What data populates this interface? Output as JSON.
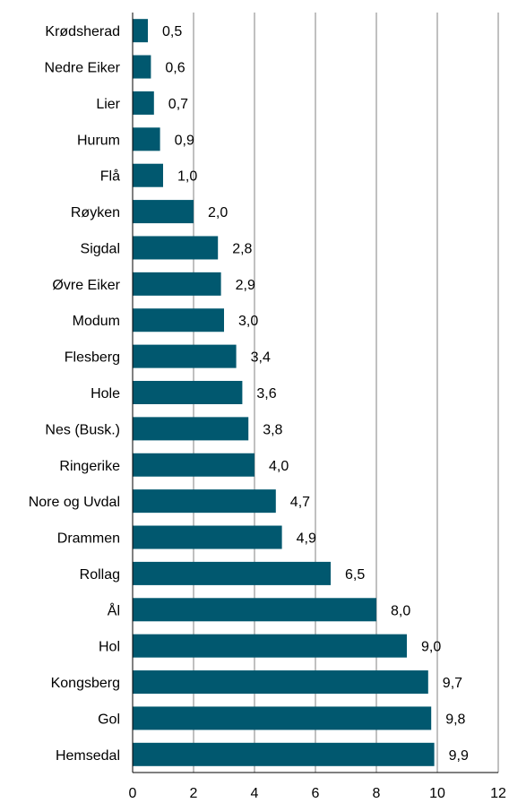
{
  "chart_data": {
    "type": "bar",
    "orientation": "horizontal",
    "categories": [
      "Krødsherad",
      "Nedre Eiker",
      "Lier",
      "Hurum",
      "Flå",
      "Røyken",
      "Sigdal",
      "Øvre Eiker",
      "Modum",
      "Flesberg",
      "Hole",
      "Nes (Busk.)",
      "Ringerike",
      "Nore og Uvdal",
      "Drammen",
      "Rollag",
      "Ål",
      "Hol",
      "Kongsberg",
      "Gol",
      "Hemsedal"
    ],
    "values": [
      0.5,
      0.6,
      0.7,
      0.9,
      1.0,
      2.0,
      2.8,
      2.9,
      3.0,
      3.4,
      3.6,
      3.8,
      4.0,
      4.7,
      4.9,
      6.5,
      8.0,
      9.0,
      9.7,
      9.8,
      9.9
    ],
    "value_labels": [
      "0,5",
      "0,6",
      "0,7",
      "0,9",
      "1,0",
      "2,0",
      "2,8",
      "2,9",
      "3,0",
      "3,4",
      "3,6",
      "3,8",
      "4,0",
      "4,7",
      "4,9",
      "6,5",
      "8,0",
      "9,0",
      "9,7",
      "9,8",
      "9,9"
    ],
    "x_ticks": [
      "0",
      "2",
      "4",
      "6",
      "8",
      "10",
      "12"
    ],
    "xlim": [
      0,
      12
    ],
    "title": "",
    "xlabel": "",
    "ylabel": "",
    "grid": "vertical",
    "legend": "none",
    "bar_color": "#01586F",
    "grid_color": "#808080"
  }
}
